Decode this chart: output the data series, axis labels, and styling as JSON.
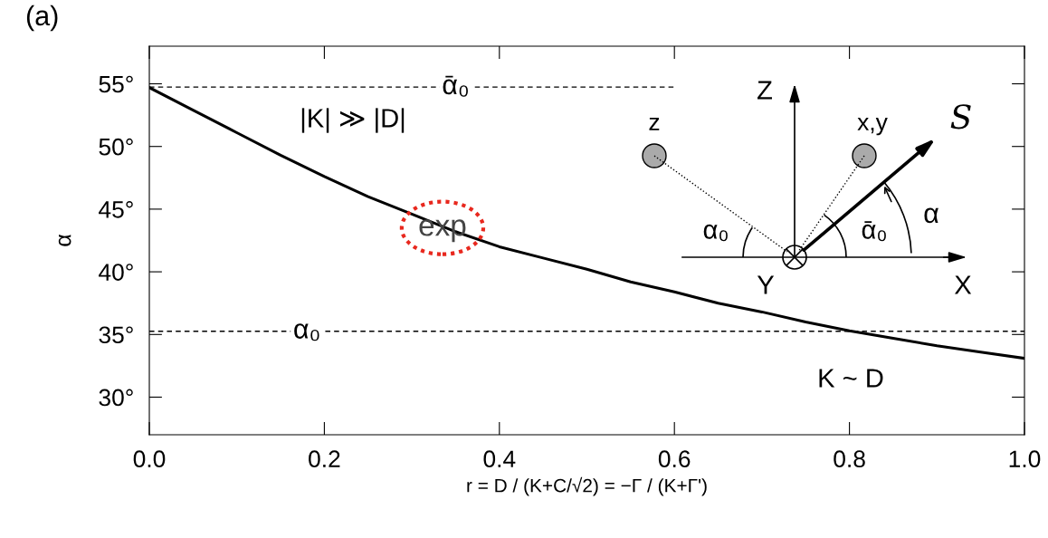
{
  "chart_data": {
    "type": "line",
    "xlabel": "r = D / (K+C/√2) = −Γ / (K+Γ')",
    "ylabel": "α",
    "x": [
      0,
      0.05,
      0.1,
      0.15,
      0.2,
      0.25,
      0.3,
      0.35,
      0.4,
      0.45,
      0.5,
      0.55,
      0.6,
      0.65,
      0.7,
      0.75,
      0.8,
      0.85,
      0.9,
      0.95,
      1.0
    ],
    "series": [
      {
        "color": "#000000",
        "values": [
          54.7,
          52.9,
          51.1,
          49.3,
          47.6,
          46.0,
          44.6,
          43.2,
          42.0,
          41.1,
          40.2,
          39.2,
          38.4,
          37.5,
          36.8,
          36.0,
          35.3,
          34.7,
          34.1,
          33.6,
          33.1
        ]
      }
    ],
    "xlim": [
      0,
      1
    ],
    "xticks": [
      {
        "value": 0,
        "label": "0.0"
      },
      0.2,
      0.4,
      0.6,
      0.8,
      {
        "value": 1,
        "label": "1.0"
      }
    ],
    "ylim": [
      27,
      58
    ],
    "yticks": [
      {
        "value": 30,
        "label": "30°"
      },
      {
        "value": 35,
        "label": "35°"
      },
      {
        "value": 40,
        "label": "40°"
      },
      {
        "value": 45,
        "label": "45°"
      },
      {
        "value": 50,
        "label": "50°"
      },
      {
        "value": 55,
        "label": "55°"
      }
    ],
    "ref_lines": [
      {
        "axis": "y",
        "value": 54.74,
        "label": "ᾱ₀",
        "line_style": "dashed",
        "color": "#000000"
      },
      {
        "axis": "y",
        "value": 35.26,
        "label": "α₀",
        "line_style": "dashed",
        "color": "#000000"
      }
    ],
    "annotations": [
      "(a)",
      "|K| ≫ |D|",
      "K ~ D",
      {
        "text": "exp",
        "x": 0.335,
        "y": 43.5
      },
      "Z",
      "z",
      "x,y",
      "S",
      "α₀",
      "ᾱ₀",
      "α",
      "Y",
      "X"
    ],
    "grid": false,
    "legend": false,
    "marker": "none",
    "line_style": "solid"
  }
}
